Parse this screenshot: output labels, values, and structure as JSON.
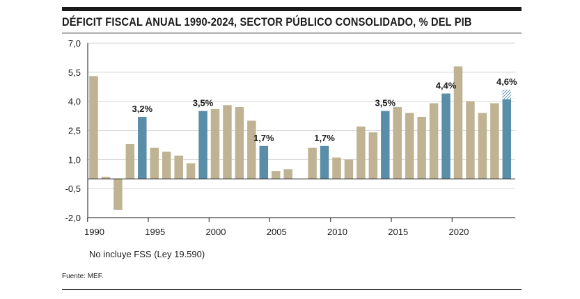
{
  "header": {
    "title": "DÉFICIT FISCAL ANUAL 1990-2024, SECTOR PÚBLICO CONSOLIDADO, % DEL PIB"
  },
  "note": "No incluye FSS (Ley 19.590)",
  "source": "Fuente: MEF.",
  "colors": {
    "default": "#bfb393",
    "highlight": "#5a8ea8",
    "hatch": "#5a8ea8"
  },
  "chart_data": {
    "type": "bar",
    "title": "DÉFICIT FISCAL ANUAL 1990-2024, SECTOR PÚBLICO CONSOLIDADO, % DEL PIB",
    "xlabel": "",
    "ylabel": "",
    "ylim": [
      -2.0,
      7.0
    ],
    "yticks": [
      "7,0",
      "5,5",
      "4,0",
      "2,5",
      "1,0",
      "-0,5",
      "-2,0"
    ],
    "ytick_values": [
      7.0,
      5.5,
      4.0,
      2.5,
      1.0,
      -0.5,
      -2.0
    ],
    "xticks": [
      "1990",
      "1995",
      "2000",
      "2005",
      "2010",
      "2015",
      "2020"
    ],
    "xtick_years": [
      1990,
      1995,
      2000,
      2005,
      2010,
      2015,
      2020
    ],
    "grid": true,
    "categories": [
      1990,
      1991,
      1992,
      1993,
      1994,
      1995,
      1996,
      1997,
      1998,
      1999,
      2000,
      2001,
      2002,
      2003,
      2004,
      2005,
      2006,
      2007,
      2008,
      2009,
      2010,
      2011,
      2012,
      2013,
      2014,
      2015,
      2016,
      2017,
      2018,
      2019,
      2020,
      2021,
      2022,
      2023,
      2024
    ],
    "values": [
      5.3,
      0.1,
      -1.6,
      1.8,
      3.2,
      1.6,
      1.4,
      1.2,
      0.8,
      3.5,
      3.6,
      3.8,
      3.7,
      3.0,
      1.7,
      0.4,
      0.5,
      null,
      1.6,
      1.7,
      1.1,
      1.0,
      2.7,
      2.4,
      3.5,
      3.7,
      3.4,
      3.2,
      3.9,
      4.4,
      5.8,
      4.0,
      3.4,
      3.9,
      4.6
    ],
    "highlighted": [
      1994,
      1999,
      2004,
      2009,
      2014,
      2019,
      2024
    ],
    "hatched_top": {
      "year": 2024,
      "from": 4.1,
      "to": 4.6
    },
    "annotations": [
      {
        "year": 1994,
        "label": "3,2%"
      },
      {
        "year": 1999,
        "label": "3,5%"
      },
      {
        "year": 2004,
        "label": "1,7%"
      },
      {
        "year": 2009,
        "label": "1,7%"
      },
      {
        "year": 2014,
        "label": "3,5%"
      },
      {
        "year": 2019,
        "label": "4,4%"
      },
      {
        "year": 2024,
        "label": "4,6%"
      }
    ]
  }
}
